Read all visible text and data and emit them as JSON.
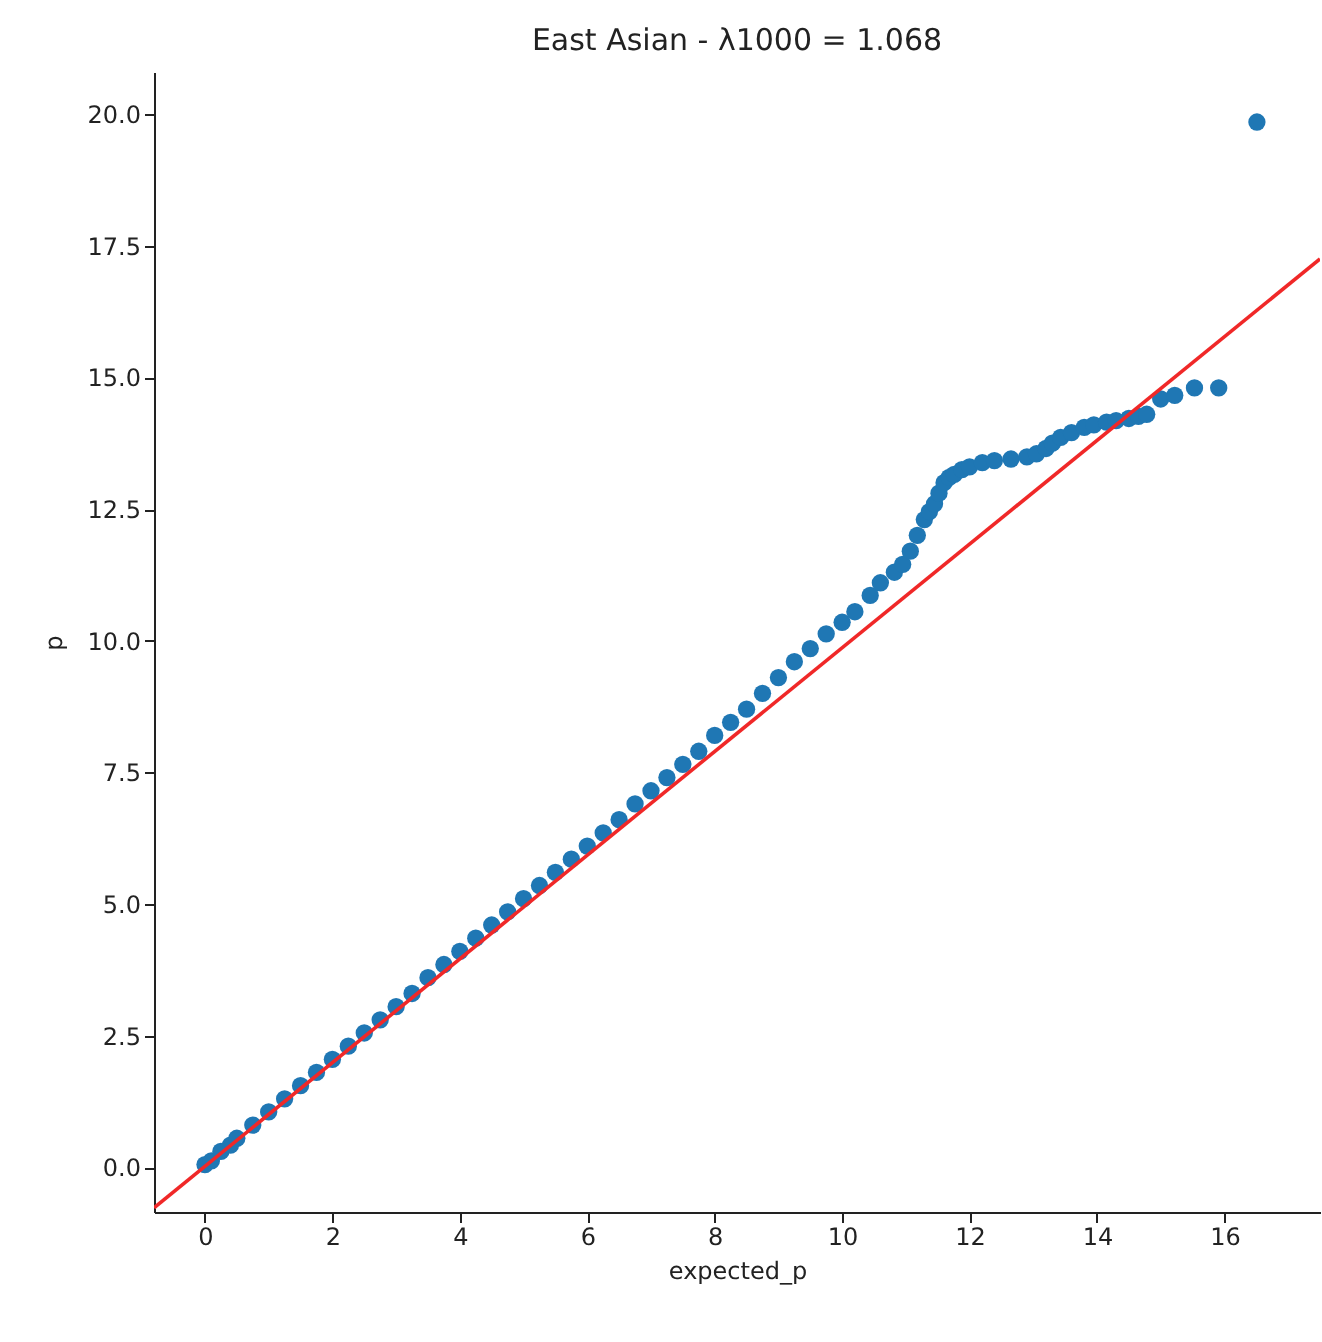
{
  "chart_data": {
    "type": "scatter",
    "title": "East Asian - λ1000 = 1.068",
    "xlabel": "expected_p",
    "ylabel": "p",
    "xlim": [
      -0.8,
      17.5
    ],
    "ylim": [
      -0.85,
      20.8
    ],
    "xticks": [
      0,
      2,
      4,
      6,
      8,
      10,
      12,
      14,
      16
    ],
    "yticks": [
      {
        "value": 0,
        "label": "0.0"
      },
      {
        "value": 2.5,
        "label": "2.5"
      },
      {
        "value": 5,
        "label": "5.0"
      },
      {
        "value": 7.5,
        "label": "7.5"
      },
      {
        "value": 10,
        "label": "10.0"
      },
      {
        "value": 12.5,
        "label": "12.5"
      },
      {
        "value": 15,
        "label": "15.0"
      },
      {
        "value": 17.5,
        "label": "17.5"
      },
      {
        "value": 20,
        "label": "20.0"
      }
    ],
    "series": [
      {
        "marker": "circle",
        "color": "#1f77b4",
        "x": [
          0,
          0.1,
          0.25,
          0.4,
          0.5,
          0.75,
          1,
          1.25,
          1.5,
          1.75,
          2,
          2.25,
          2.5,
          2.75,
          3,
          3.25,
          3.5,
          3.75,
          4,
          4.25,
          4.5,
          4.75,
          5,
          5.25,
          5.5,
          5.75,
          6,
          6.25,
          6.5,
          6.75,
          7,
          7.25,
          7.5,
          7.75,
          8,
          8.25,
          8.5,
          8.75,
          9,
          9.25,
          9.5,
          9.75,
          10,
          10.2,
          10.44,
          10.6,
          10.82,
          10.95,
          11.07,
          11.18,
          11.29,
          11.37,
          11.45,
          11.52,
          11.6,
          11.68,
          11.76,
          11.88,
          12,
          12.2,
          12.39,
          12.65,
          12.9,
          13.05,
          13.2,
          13.3,
          13.43,
          13.6,
          13.8,
          13.95,
          14.15,
          14.3,
          14.5,
          14.65,
          14.78,
          15.0,
          15.22,
          15.53,
          15.91,
          16.51
        ],
        "values": [
          0.05,
          0.12,
          0.3,
          0.42,
          0.55,
          0.8,
          1.05,
          1.3,
          1.55,
          1.8,
          2.05,
          2.3,
          2.55,
          2.8,
          3.05,
          3.3,
          3.6,
          3.85,
          4.1,
          4.35,
          4.6,
          4.85,
          5.1,
          5.35,
          5.6,
          5.85,
          6.1,
          6.35,
          6.6,
          6.9,
          7.15,
          7.4,
          7.65,
          7.9,
          8.2,
          8.45,
          8.7,
          9.0,
          9.3,
          9.6,
          9.85,
          10.13,
          10.35,
          10.55,
          10.86,
          11.1,
          11.3,
          11.45,
          11.7,
          12.0,
          12.3,
          12.45,
          12.6,
          12.8,
          13.0,
          13.1,
          13.16,
          13.25,
          13.3,
          13.38,
          13.42,
          13.45,
          13.49,
          13.55,
          13.65,
          13.75,
          13.86,
          13.95,
          14.05,
          14.1,
          14.15,
          14.18,
          14.22,
          14.26,
          14.3,
          14.59,
          14.66,
          14.8,
          14.8,
          19.85
        ]
      },
      {
        "type": "line",
        "marker": "none",
        "color": "#f02828",
        "x": [
          -0.8,
          17.5
        ],
        "values": [
          -0.77,
          17.25
        ]
      }
    ]
  }
}
